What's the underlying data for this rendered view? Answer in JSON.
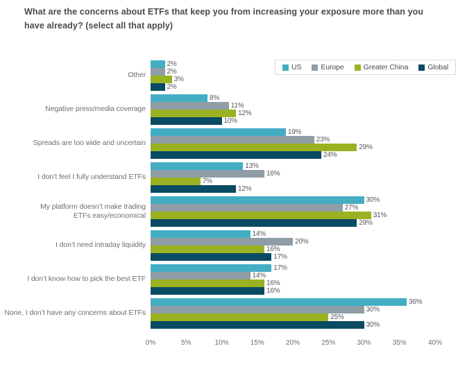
{
  "title": "What are the concerns about ETFs that keep you from increasing your exposure more than you have already? (select all that apply)",
  "colors": {
    "us": "#43AEC3",
    "europe": "#8E9DA6",
    "greater_china": "#9AB122",
    "global": "#0A4A63",
    "title_text": "#4A4A4C",
    "label_text": "#6D6E71",
    "value_text": "#55565A",
    "legend_border": "#D8D9DB"
  },
  "chart_data": {
    "type": "bar",
    "orientation": "horizontal",
    "title": "What are the concerns about ETFs that keep you from increasing your exposure more than you have already? (select all that apply)",
    "categories": [
      "Other",
      "Negative press/media coverage",
      "Spreads are too wide and uncertain",
      "I don’t feel I fully understand ETFs",
      "My platform doesn’t make trading\nETFs easy/economical",
      "I don’t need intraday liquidity",
      "I don’t know how to pick the best ETF",
      "None, I don’t have any concerns about ETFs"
    ],
    "series": [
      {
        "name": "US",
        "color": "#43AEC3",
        "values": [
          2,
          8,
          19,
          13,
          30,
          14,
          17,
          36
        ]
      },
      {
        "name": "Europe",
        "color": "#8E9DA6",
        "values": [
          2,
          11,
          23,
          16,
          27,
          20,
          14,
          30
        ]
      },
      {
        "name": "Greater China",
        "color": "#9AB122",
        "values": [
          3,
          12,
          29,
          7,
          31,
          16,
          16,
          25
        ]
      },
      {
        "name": "Global",
        "color": "#0A4A63",
        "values": [
          2,
          10,
          24,
          12,
          29,
          17,
          16,
          30
        ]
      }
    ],
    "value_suffix": "%",
    "x_ticks": [
      "0%",
      "5%",
      "10%",
      "15%",
      "20%",
      "25%",
      "30%",
      "35%",
      "40%"
    ],
    "xlim": [
      0,
      40
    ],
    "grid": false,
    "legend_position": "top-right"
  }
}
